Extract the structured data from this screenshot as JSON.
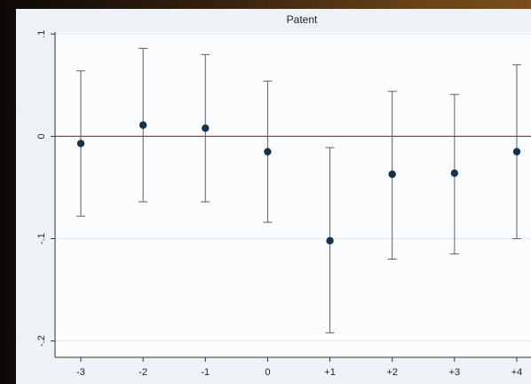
{
  "chart_data": {
    "type": "scatter",
    "title": "Patent",
    "xlabel": "",
    "ylabel": "",
    "categories": [
      "-3",
      "-2",
      "-1",
      "0",
      "+1",
      "+2",
      "+3",
      "+4"
    ],
    "y_ticks": [
      0.1,
      0,
      -0.1,
      -0.2
    ],
    "y_tick_labels": [
      ".1",
      "0",
      "-.1",
      "-.2"
    ],
    "ylim": [
      -0.216,
      0.102
    ],
    "reference_line": {
      "y": 0,
      "color": "#b03a2e"
    },
    "series": [
      {
        "estimate": [
          -0.007,
          0.011,
          0.008,
          -0.015,
          -0.102,
          -0.037,
          -0.036,
          -0.015
        ],
        "ci_low": [
          -0.078,
          -0.064,
          -0.064,
          -0.084,
          -0.192,
          -0.12,
          -0.115,
          -0.1
        ],
        "ci_high": [
          0.064,
          0.086,
          0.08,
          0.054,
          -0.011,
          0.044,
          0.041,
          0.07
        ],
        "color": "#17324d"
      }
    ],
    "grid": true,
    "legend": "none",
    "colors": {
      "plot_bg": "#fbfcfd",
      "outer_bg": "#eef2f6",
      "grid": "#e3e8ee",
      "ci": "#5a6066",
      "axis": "#333333"
    }
  }
}
